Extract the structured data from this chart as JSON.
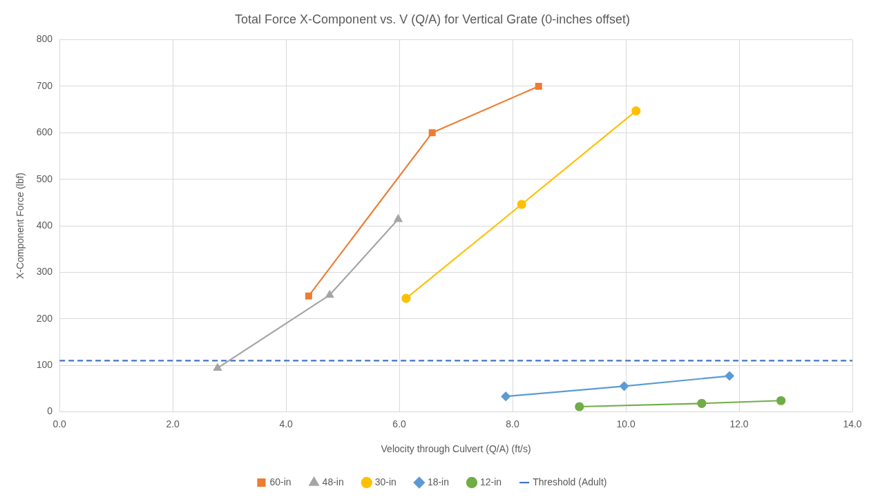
{
  "chart_data": {
    "type": "line",
    "title": "Total Force X-Component vs. V (Q/A) for Vertical Grate (0-inches offset)",
    "xlabel": "Velocity through Culvert (Q/A) (ft/s)",
    "ylabel": "X-Component Force (lbf)",
    "xlim": [
      0,
      14
    ],
    "xticks": [
      {
        "value": 0,
        "label": "0.0"
      },
      {
        "value": 2,
        "label": "2.0"
      },
      {
        "value": 4,
        "label": "4.0"
      },
      {
        "value": 6,
        "label": "6.0"
      },
      {
        "value": 8,
        "label": "8.0"
      },
      {
        "value": 10,
        "label": "10.0"
      },
      {
        "value": 12,
        "label": "12.0"
      },
      {
        "value": 14,
        "label": "14.0"
      }
    ],
    "ylim": [
      0,
      800
    ],
    "yticks": [
      0,
      100,
      200,
      300,
      400,
      500,
      600,
      700,
      800
    ],
    "grid": true,
    "legend": "bottom",
    "series": [
      {
        "name": "60-in",
        "color": "#ed7d31",
        "marker": "square",
        "x": [
          4.4,
          6.58,
          8.46
        ],
        "values": [
          249,
          600,
          700
        ]
      },
      {
        "name": "48-in",
        "color": "#a5a5a5",
        "marker": "triangle",
        "x": [
          2.79,
          4.77,
          5.98
        ],
        "values": [
          94,
          251,
          414
        ]
      },
      {
        "name": "30-in",
        "color": "#ffc000",
        "marker": "circle",
        "x": [
          6.12,
          8.16,
          10.18
        ],
        "values": [
          244,
          446,
          647
        ]
      },
      {
        "name": "18-in",
        "color": "#5b9bd5",
        "marker": "diamond",
        "x": [
          7.88,
          9.97,
          11.83
        ],
        "values": [
          33,
          55,
          77
        ]
      },
      {
        "name": "12-in",
        "color": "#70ad47",
        "marker": "circle",
        "x": [
          9.18,
          11.34,
          12.74
        ],
        "values": [
          11,
          18,
          24
        ]
      }
    ],
    "ref_lines": [
      {
        "axis": "y",
        "value": 110,
        "label": "Threshold (Adult)",
        "color": "#4472c4",
        "line_style": "dashed"
      }
    ]
  }
}
